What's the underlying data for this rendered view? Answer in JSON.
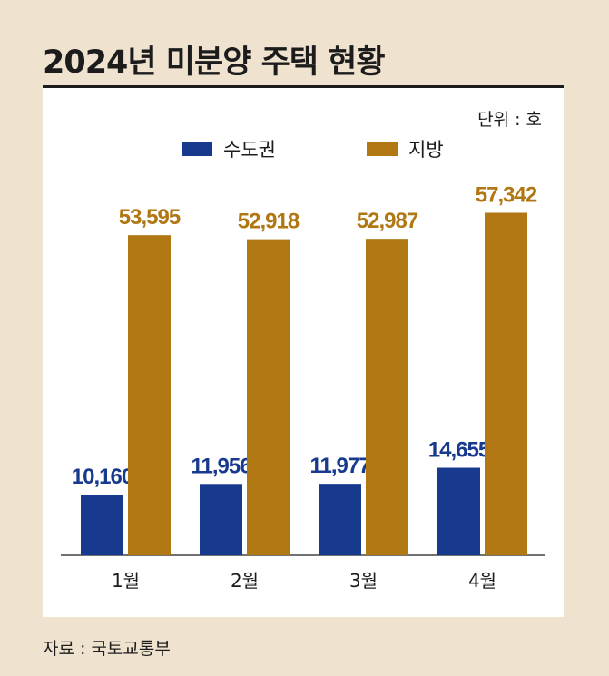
{
  "title": "2024년 미분양 주택 현황",
  "unit": "단위 : 호",
  "source": "자료 : 국토교통부",
  "legend": [
    {
      "label": "수도권",
      "color": "#173a8e"
    },
    {
      "label": "지방",
      "color": "#b07712"
    }
  ],
  "colors": {
    "background": "#efe3d0",
    "panel": "#ffffff",
    "capital_label": "#173a8e",
    "regional_label": "#b07712"
  },
  "chart_data": {
    "type": "bar",
    "categories": [
      "1월",
      "2월",
      "3월",
      "4월"
    ],
    "series": [
      {
        "name": "수도권",
        "values": [
          10160,
          11956,
          11977,
          14655
        ],
        "labels": [
          "10,160",
          "11,956",
          "11,977",
          "14,655"
        ],
        "color": "#173a8e"
      },
      {
        "name": "지방",
        "values": [
          53595,
          52918,
          52987,
          57342
        ],
        "labels": [
          "53,595",
          "52,918",
          "52,987",
          "57,342"
        ],
        "color": "#b07712"
      }
    ],
    "title": "2024년 미분양 주택 현황",
    "xlabel": "",
    "ylabel": "",
    "ylim": [
      0,
      60000
    ],
    "grid": false,
    "legend_position": "top-center"
  }
}
